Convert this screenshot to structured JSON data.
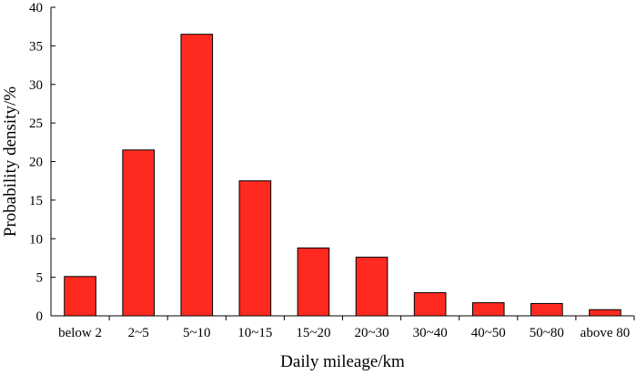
{
  "chart_data": {
    "type": "bar",
    "title": "",
    "xlabel": "Daily mileage/km",
    "ylabel": "Probability density/%",
    "categories": [
      "below 2",
      "2~5",
      "5~10",
      "10~15",
      "15~20",
      "20~30",
      "30~40",
      "40~50",
      "50~80",
      "above 80"
    ],
    "values": [
      5.1,
      21.5,
      36.5,
      17.5,
      8.8,
      7.6,
      3.0,
      1.7,
      1.6,
      0.8
    ],
    "ylim": [
      0,
      40
    ],
    "yticks": [
      0,
      5,
      10,
      15,
      20,
      25,
      30,
      35,
      40
    ],
    "grid": false,
    "legend": "none",
    "bar_color": "#ff2a1f"
  }
}
